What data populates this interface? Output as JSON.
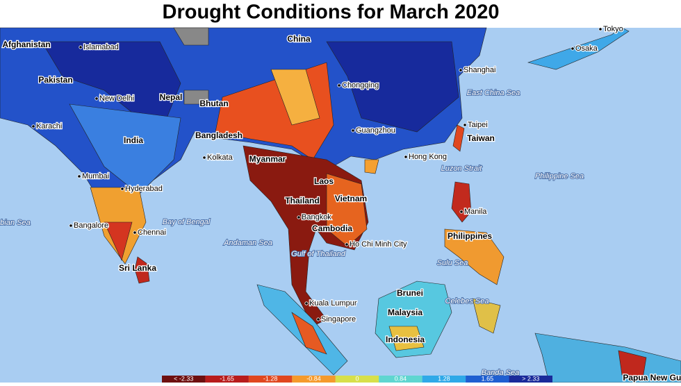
{
  "title": "Drought Conditions for March 2020",
  "countries": [
    "Afghanistan",
    "Pakistan",
    "China",
    "Nepal",
    "Bhutan",
    "Bangladesh",
    "India",
    "Myanmar",
    "Laos",
    "Thailand",
    "Vietnam",
    "Cambodia",
    "Sri Lanka",
    "Taiwan",
    "Philippines",
    "Brunei",
    "Malaysia",
    "Indonesia",
    "Papua New Gui"
  ],
  "cities": [
    "Islamabad",
    "New Delhi",
    "Karachi",
    "Mumbai",
    "Hyderabad",
    "Bangalore",
    "Chennai",
    "Kolkata",
    "Chongqing",
    "Guangzhou",
    "Hong Kong",
    "Shanghai",
    "Taipei",
    "Osaka",
    "Tokyo",
    "Manila",
    "Bangkok",
    "Ho Chi Minh City",
    "Kuala Lumpur",
    "Singapore"
  ],
  "seas": [
    "East China Sea",
    "Luzon Strait",
    "Philippine Sea",
    "Bay of Bengal",
    "Andaman Sea",
    "Gulf of Thailand",
    "Sulu Sea",
    "Celebes Sea",
    "Banda Sea",
    "bian Sea"
  ],
  "legend": {
    "labels": [
      "< -2.33",
      "-1.65",
      "-1.28",
      "-0.84",
      "0",
      "0.84",
      "1.28",
      "1.65",
      "> 2.33"
    ],
    "colors": [
      "#6e0f0f",
      "#b81c1c",
      "#e0471f",
      "#f59a2c",
      "#d7e04a",
      "#5fd6d0",
      "#2fa9e8",
      "#1f5fd1",
      "#1a2a9a"
    ]
  }
}
